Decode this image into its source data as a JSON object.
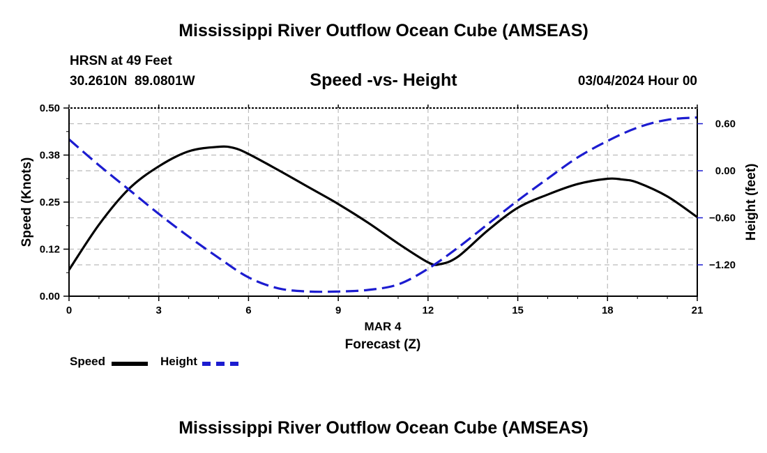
{
  "page": {
    "title": "Mississippi River Outflow Ocean Cube (AMSEAS)",
    "footer_title": "Mississippi River Outflow Ocean Cube (AMSEAS)",
    "station": "HRSN at 49 Feet",
    "coords": "30.2610N  89.0801W",
    "datetime": "03/04/2024 Hour 00",
    "chart_title": "Speed -vs- Height"
  },
  "chart_data": {
    "type": "line",
    "title": "Speed -vs- Height",
    "xlabel": "Forecast (Z)",
    "xsublabel": "MAR 4",
    "ylabel": "Speed (Knots)",
    "y2label": "Height (feet)",
    "xlim": [
      0,
      21
    ],
    "ylim": [
      0,
      0.5
    ],
    "y2lim": [
      -1.6,
      0.8
    ],
    "xticks": [
      0,
      3,
      6,
      9,
      12,
      15,
      18,
      21
    ],
    "xtick_labels": [
      "0",
      "3",
      "6",
      "9",
      "12",
      "15",
      "18",
      "21"
    ],
    "yticks": [
      0,
      0.125,
      0.25,
      0.375,
      0.5
    ],
    "ytick_labels": [
      "0.00",
      "0.12",
      "0.25",
      "0.38",
      "0.50"
    ],
    "y2ticks": [
      -1.2,
      -0.6,
      0,
      0.6
    ],
    "y2tick_labels": [
      "−1.20",
      "−0.60",
      "0.00",
      "0.60"
    ],
    "grid": true,
    "series": [
      {
        "name": "Speed",
        "axis": "left",
        "color": "#000000",
        "style": "solid",
        "x": [
          0,
          1,
          2,
          3,
          4,
          5,
          5.5,
          6,
          7,
          8,
          9,
          10,
          11,
          12,
          12.4,
          13,
          14,
          15,
          16,
          17,
          18,
          18.5,
          19,
          20,
          21
        ],
        "values": [
          0.07,
          0.19,
          0.285,
          0.345,
          0.385,
          0.397,
          0.394,
          0.378,
          0.335,
          0.29,
          0.245,
          0.195,
          0.14,
          0.09,
          0.085,
          0.105,
          0.175,
          0.235,
          0.27,
          0.298,
          0.312,
          0.31,
          0.302,
          0.265,
          0.21
        ]
      },
      {
        "name": "Height",
        "axis": "right",
        "color": "#1c1cd0",
        "style": "dashed",
        "x": [
          0,
          1,
          2,
          3,
          4,
          5,
          6,
          7,
          8,
          9,
          10,
          11,
          12,
          13,
          14,
          15,
          16,
          17,
          18,
          19,
          20,
          21
        ],
        "values": [
          0.4,
          0.07,
          -0.24,
          -0.55,
          -0.84,
          -1.11,
          -1.36,
          -1.5,
          -1.54,
          -1.54,
          -1.52,
          -1.45,
          -1.25,
          -0.98,
          -0.68,
          -0.38,
          -0.1,
          0.17,
          0.38,
          0.55,
          0.65,
          0.68
        ]
      }
    ],
    "legend": [
      {
        "label": "Speed",
        "color": "#000000",
        "style": "solid"
      },
      {
        "label": "Height",
        "color": "#1c1cd0",
        "style": "dashed"
      }
    ],
    "legend_position": "bottom-left"
  }
}
